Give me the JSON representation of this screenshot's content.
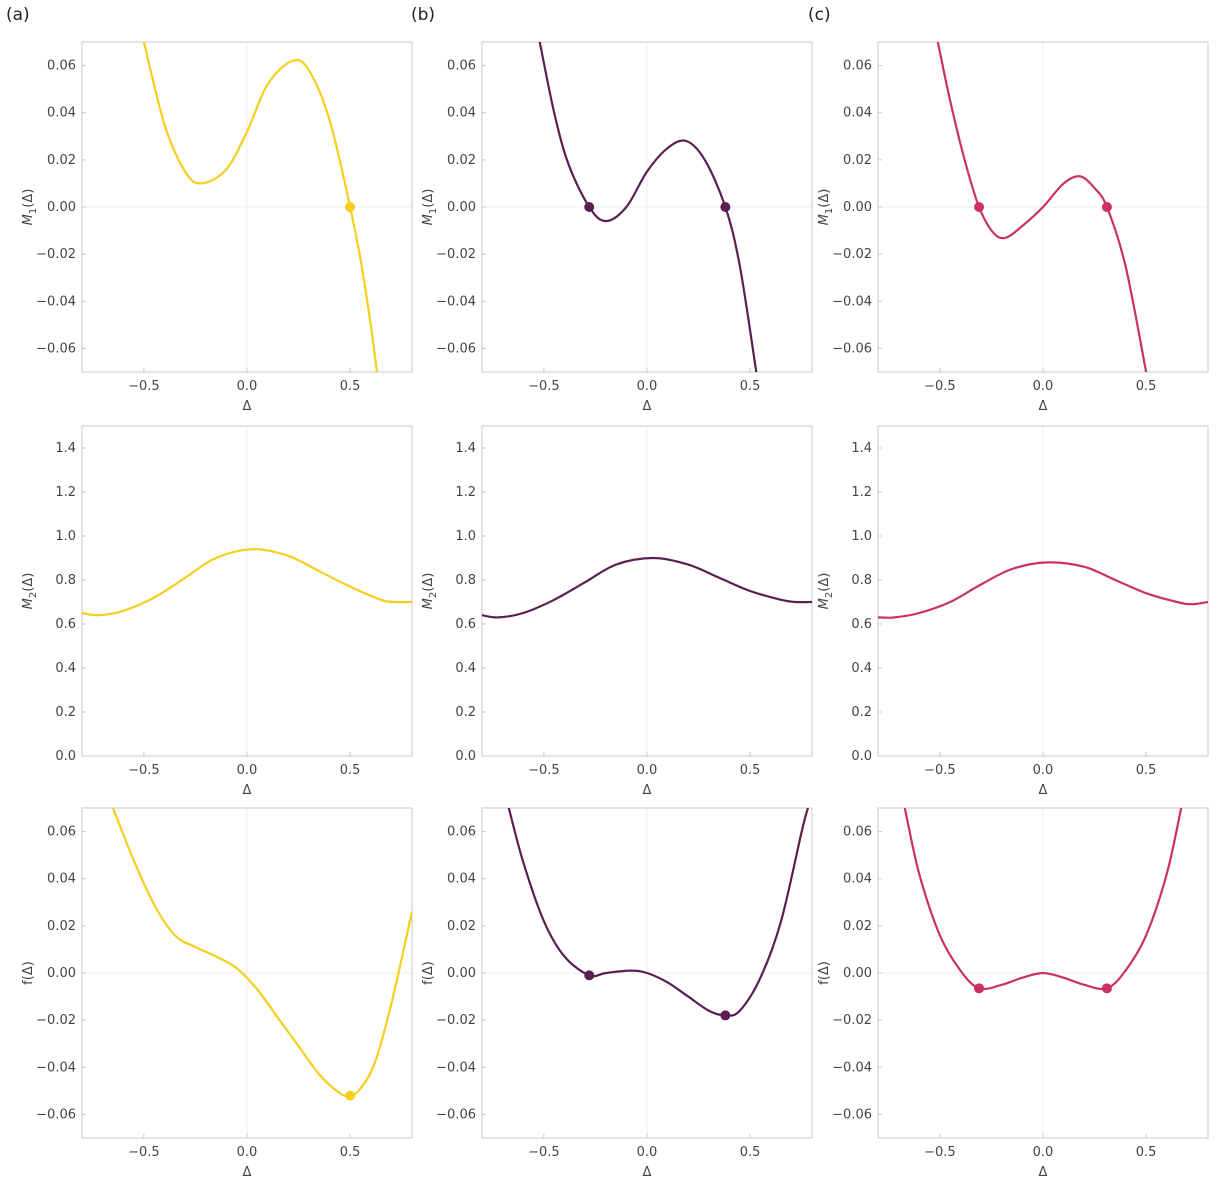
{
  "panel_labels": [
    "(a)",
    "(b)",
    "(c)"
  ],
  "colors": {
    "a": "#f5cf1d",
    "b": "#5a1f50",
    "c": "#cc3066"
  },
  "chart_data": [
    {
      "id": "a-M1",
      "type": "line",
      "xlabel": "Δ",
      "ylabel_main": "M",
      "ylabel_sub": "1",
      "ylabel_tail": "(Δ)",
      "xlim": [
        -0.8,
        0.8
      ],
      "ylim": [
        -0.07,
        0.07
      ],
      "xticks": [
        -0.5,
        0,
        0.5
      ],
      "xtick_labels": [
        "−0.5",
        "0.0",
        "0.5"
      ],
      "yticks": [
        -0.06,
        -0.04,
        -0.02,
        0,
        0.02,
        0.04,
        0.06
      ],
      "ytick_labels": [
        "−0.06",
        "−0.04",
        "−0.02",
        "0.00",
        "0.02",
        "0.04",
        "0.06"
      ],
      "series": [
        {
          "color": "#f5cf1d",
          "x": [
            -0.5,
            -0.4,
            -0.3,
            -0.22,
            -0.1,
            0,
            0.1,
            0.22,
            0.3,
            0.4,
            0.5,
            0.55,
            0.6,
            0.63
          ],
          "y": [
            0.07,
            0.035,
            0.015,
            0.01,
            0.016,
            0.032,
            0.052,
            0.062,
            0.058,
            0.037,
            0,
            -0.022,
            -0.05,
            -0.07
          ]
        }
      ],
      "markers": [
        {
          "x": 0.5,
          "y": 0
        }
      ]
    },
    {
      "id": "b-M1",
      "type": "line",
      "xlabel": "Δ",
      "ylabel_main": "M",
      "ylabel_sub": "1",
      "ylabel_tail": "(Δ)",
      "xlim": [
        -0.8,
        0.8
      ],
      "ylim": [
        -0.07,
        0.07
      ],
      "xticks": [
        -0.5,
        0,
        0.5
      ],
      "xtick_labels": [
        "−0.5",
        "0.0",
        "0.5"
      ],
      "yticks": [
        -0.06,
        -0.04,
        -0.02,
        0,
        0.02,
        0.04,
        0.06
      ],
      "ytick_labels": [
        "−0.06",
        "−0.04",
        "−0.02",
        "0.00",
        "0.02",
        "0.04",
        "0.06"
      ],
      "series": [
        {
          "color": "#5a1f50",
          "x": [
            -0.52,
            -0.45,
            -0.38,
            -0.28,
            -0.2,
            -0.1,
            0,
            0.1,
            0.19,
            0.28,
            0.38,
            0.45,
            0.53
          ],
          "y": [
            0.07,
            0.04,
            0.018,
            0,
            -0.006,
            0,
            0.015,
            0.025,
            0.028,
            0.02,
            0,
            -0.025,
            -0.07
          ]
        }
      ],
      "markers": [
        {
          "x": -0.28,
          "y": 0
        },
        {
          "x": 0.38,
          "y": 0
        }
      ]
    },
    {
      "id": "c-M1",
      "type": "line",
      "xlabel": "Δ",
      "ylabel_main": "M",
      "ylabel_sub": "1",
      "ylabel_tail": "(Δ)",
      "xlim": [
        -0.8,
        0.8
      ],
      "ylim": [
        -0.07,
        0.07
      ],
      "xticks": [
        -0.5,
        0,
        0.5
      ],
      "xtick_labels": [
        "−0.5",
        "0.0",
        "0.5"
      ],
      "yticks": [
        -0.06,
        -0.04,
        -0.02,
        0,
        0.02,
        0.04,
        0.06
      ],
      "ytick_labels": [
        "−0.06",
        "−0.04",
        "−0.02",
        "0.00",
        "0.02",
        "0.04",
        "0.06"
      ],
      "series": [
        {
          "color": "#cc3066",
          "x": [
            -0.51,
            -0.45,
            -0.38,
            -0.31,
            -0.24,
            -0.18,
            -0.1,
            0,
            0.1,
            0.18,
            0.25,
            0.31,
            0.4,
            0.5
          ],
          "y": [
            0.07,
            0.045,
            0.02,
            0,
            -0.011,
            -0.013,
            -0.008,
            0,
            0.01,
            0.013,
            0.008,
            0,
            -0.025,
            -0.07
          ]
        }
      ],
      "markers": [
        {
          "x": -0.31,
          "y": 0
        },
        {
          "x": 0.31,
          "y": 0
        }
      ]
    },
    {
      "id": "a-M2",
      "type": "line",
      "xlabel": "Δ",
      "ylabel_main": "M",
      "ylabel_sub": "2",
      "ylabel_tail": "(Δ)",
      "xlim": [
        -0.8,
        0.8
      ],
      "ylim": [
        0,
        1.5
      ],
      "xticks": [
        -0.5,
        0,
        0.5
      ],
      "xtick_labels": [
        "−0.5",
        "0.0",
        "0.5"
      ],
      "yticks": [
        0,
        0.2,
        0.4,
        0.6,
        0.8,
        1.0,
        1.2,
        1.4
      ],
      "ytick_labels": [
        "0.0",
        "0.2",
        "0.4",
        "0.6",
        "0.8",
        "1.0",
        "1.2",
        "1.4"
      ],
      "series": [
        {
          "color": "#f5cf1d",
          "x": [
            -0.8,
            -0.72,
            -0.6,
            -0.45,
            -0.3,
            -0.15,
            0.03,
            0.2,
            0.35,
            0.5,
            0.65,
            0.72,
            0.8
          ],
          "y": [
            0.65,
            0.64,
            0.66,
            0.72,
            0.81,
            0.9,
            0.94,
            0.91,
            0.84,
            0.77,
            0.71,
            0.7,
            0.7
          ]
        }
      ],
      "markers": []
    },
    {
      "id": "b-M2",
      "type": "line",
      "xlabel": "Δ",
      "ylabel_main": "M",
      "ylabel_sub": "2",
      "ylabel_tail": "(Δ)",
      "xlim": [
        -0.8,
        0.8
      ],
      "ylim": [
        0,
        1.5
      ],
      "xticks": [
        -0.5,
        0,
        0.5
      ],
      "xtick_labels": [
        "−0.5",
        "0.0",
        "0.5"
      ],
      "yticks": [
        0,
        0.2,
        0.4,
        0.6,
        0.8,
        1.0,
        1.2,
        1.4
      ],
      "ytick_labels": [
        "0.0",
        "0.2",
        "0.4",
        "0.6",
        "0.8",
        "1.0",
        "1.2",
        "1.4"
      ],
      "series": [
        {
          "color": "#5a1f50",
          "x": [
            -0.8,
            -0.72,
            -0.6,
            -0.45,
            -0.3,
            -0.15,
            0.03,
            0.2,
            0.35,
            0.5,
            0.65,
            0.72,
            0.8
          ],
          "y": [
            0.64,
            0.63,
            0.65,
            0.71,
            0.79,
            0.87,
            0.9,
            0.87,
            0.81,
            0.75,
            0.71,
            0.7,
            0.7
          ]
        }
      ],
      "markers": []
    },
    {
      "id": "c-M2",
      "type": "line",
      "xlabel": "Δ",
      "ylabel_main": "M",
      "ylabel_sub": "2",
      "ylabel_tail": "(Δ)",
      "xlim": [
        -0.8,
        0.8
      ],
      "ylim": [
        0,
        1.5
      ],
      "xticks": [
        -0.5,
        0,
        0.5
      ],
      "xtick_labels": [
        "−0.5",
        "0.0",
        "0.5"
      ],
      "yticks": [
        0,
        0.2,
        0.4,
        0.6,
        0.8,
        1.0,
        1.2,
        1.4
      ],
      "ytick_labels": [
        "0.0",
        "0.2",
        "0.4",
        "0.6",
        "0.8",
        "1.0",
        "1.2",
        "1.4"
      ],
      "series": [
        {
          "color": "#cc3066",
          "x": [
            -0.8,
            -0.72,
            -0.6,
            -0.45,
            -0.3,
            -0.15,
            0.02,
            0.2,
            0.35,
            0.5,
            0.65,
            0.72,
            0.8
          ],
          "y": [
            0.63,
            0.63,
            0.65,
            0.7,
            0.78,
            0.85,
            0.88,
            0.86,
            0.8,
            0.74,
            0.7,
            0.69,
            0.7
          ]
        }
      ],
      "markers": []
    },
    {
      "id": "a-f",
      "type": "line",
      "xlabel": "Δ",
      "ylabel_main": "f(Δ)",
      "ylabel_sub": "",
      "ylabel_tail": "",
      "xlim": [
        -0.8,
        0.8
      ],
      "ylim": [
        -0.07,
        0.07
      ],
      "xticks": [
        -0.5,
        0,
        0.5
      ],
      "xtick_labels": [
        "−0.5",
        "0.0",
        "0.5"
      ],
      "yticks": [
        -0.06,
        -0.04,
        -0.02,
        0,
        0.02,
        0.04,
        0.06
      ],
      "ytick_labels": [
        "−0.06",
        "−0.04",
        "−0.02",
        "0.00",
        "0.02",
        "0.04",
        "0.06"
      ],
      "series": [
        {
          "color": "#f5cf1d",
          "x": [
            -0.65,
            -0.55,
            -0.45,
            -0.35,
            -0.25,
            -0.15,
            -0.05,
            0.05,
            0.15,
            0.25,
            0.35,
            0.45,
            0.5,
            0.55,
            0.62,
            0.7,
            0.8
          ],
          "y": [
            0.07,
            0.048,
            0.029,
            0.016,
            0.011,
            0.007,
            0.002,
            -0.007,
            -0.019,
            -0.031,
            -0.043,
            -0.051,
            -0.052,
            -0.049,
            -0.038,
            -0.013,
            0.026
          ]
        }
      ],
      "markers": [
        {
          "x": 0.5,
          "y": -0.052
        }
      ]
    },
    {
      "id": "b-f",
      "type": "line",
      "xlabel": "Δ",
      "ylabel_main": "f(Δ)",
      "ylabel_sub": "",
      "ylabel_tail": "",
      "xlim": [
        -0.8,
        0.8
      ],
      "ylim": [
        -0.07,
        0.07
      ],
      "xticks": [
        -0.5,
        0,
        0.5
      ],
      "xtick_labels": [
        "−0.5",
        "0.0",
        "0.5"
      ],
      "yticks": [
        -0.06,
        -0.04,
        -0.02,
        0,
        0.02,
        0.04,
        0.06
      ],
      "ytick_labels": [
        "−0.06",
        "−0.04",
        "−0.02",
        "0.00",
        "0.02",
        "0.04",
        "0.06"
      ],
      "series": [
        {
          "color": "#5a1f50",
          "x": [
            -0.67,
            -0.6,
            -0.5,
            -0.4,
            -0.28,
            -0.2,
            -0.08,
            0,
            0.1,
            0.2,
            0.3,
            0.38,
            0.45,
            0.55,
            0.65,
            0.75,
            0.78
          ],
          "y": [
            0.07,
            0.047,
            0.022,
            0.007,
            -0.001,
            0,
            0.001,
            0,
            -0.004,
            -0.01,
            -0.016,
            -0.018,
            -0.016,
            -0.002,
            0.022,
            0.06,
            0.07
          ]
        }
      ],
      "markers": [
        {
          "x": -0.28,
          "y": -0.001
        },
        {
          "x": 0.38,
          "y": -0.018
        }
      ]
    },
    {
      "id": "c-f",
      "type": "line",
      "xlabel": "Δ",
      "ylabel_main": "f(Δ)",
      "ylabel_sub": "",
      "ylabel_tail": "",
      "xlim": [
        -0.8,
        0.8
      ],
      "ylim": [
        -0.07,
        0.07
      ],
      "xticks": [
        -0.5,
        0,
        0.5
      ],
      "xtick_labels": [
        "−0.5",
        "0.0",
        "0.5"
      ],
      "yticks": [
        -0.06,
        -0.04,
        -0.02,
        0,
        0.02,
        0.04,
        0.06
      ],
      "ytick_labels": [
        "−0.06",
        "−0.04",
        "−0.02",
        "0.00",
        "0.02",
        "0.04",
        "0.06"
      ],
      "series": [
        {
          "color": "#cc3066",
          "x": [
            -0.67,
            -0.6,
            -0.5,
            -0.4,
            -0.31,
            -0.2,
            -0.1,
            0,
            0.1,
            0.2,
            0.31,
            0.4,
            0.5,
            0.6,
            0.67
          ],
          "y": [
            0.07,
            0.042,
            0.016,
            0.001,
            -0.0065,
            -0.005,
            -0.002,
            0,
            -0.002,
            -0.005,
            -0.0065,
            0.001,
            0.016,
            0.042,
            0.07
          ]
        }
      ],
      "markers": [
        {
          "x": -0.31,
          "y": -0.0065
        },
        {
          "x": 0.31,
          "y": -0.0065
        }
      ]
    }
  ]
}
